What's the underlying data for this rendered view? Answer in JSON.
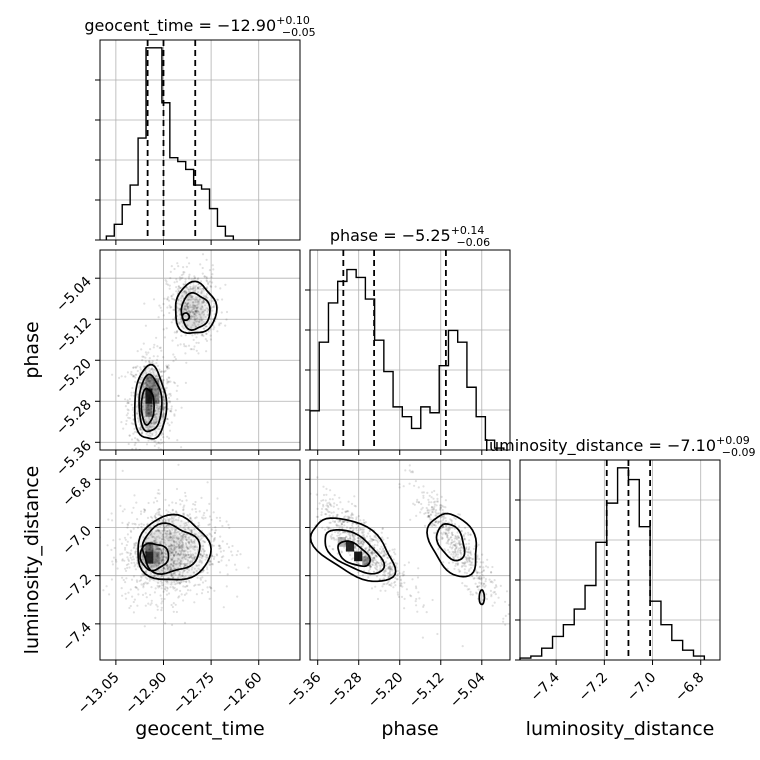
{
  "chart_data": {
    "type": "corner",
    "parameters": [
      "geocent_time",
      "phase",
      "luminosity_distance"
    ],
    "titles": [
      {
        "name": "geocent_time",
        "prefix": "geocent_time = ",
        "median": "−12.90",
        "plus": "+0.10",
        "minus": "−0.05"
      },
      {
        "name": "phase",
        "prefix": "phase = ",
        "median": "−5.25",
        "plus": "+0.14",
        "minus": "−0.06"
      },
      {
        "name": "luminosity_distance",
        "prefix": "luminosity_distance = ",
        "median": "−7.10",
        "plus": "+0.09",
        "minus": "−0.09"
      }
    ],
    "axes": {
      "geocent_time": {
        "range": [
          -13.1,
          -12.47
        ],
        "ticks": [
          -13.05,
          -12.9,
          -12.75,
          -12.6
        ],
        "tick_labels": [
          "−13.05",
          "−12.90",
          "−12.75",
          "−12.60"
        ]
      },
      "phase": {
        "range": [
          -5.375,
          -4.985
        ],
        "ticks": [
          -5.36,
          -5.28,
          -5.2,
          -5.12,
          -5.04
        ],
        "tick_labels": [
          "−5.36",
          "−5.28",
          "−5.20",
          "−5.12",
          "−5.04"
        ]
      },
      "luminosity_distance": {
        "range": [
          -7.55,
          -6.72
        ],
        "ticks": [
          -7.4,
          -7.2,
          -7.0,
          -6.8
        ],
        "tick_labels": [
          "−7.4",
          "−7.2",
          "−7.0",
          "−6.8"
        ]
      }
    },
    "histograms": {
      "geocent_time": {
        "bin_edges": [
          -13.08,
          -13.055,
          -13.03,
          -13.005,
          -12.98,
          -12.955,
          -12.93,
          -12.905,
          -12.88,
          -12.855,
          -12.83,
          -12.805,
          -12.78,
          -12.755,
          -12.73,
          -12.705,
          -12.68
        ],
        "counts": [
          0.02,
          0.08,
          0.18,
          0.28,
          0.52,
          0.98,
          0.98,
          0.7,
          0.42,
          0.4,
          0.36,
          0.28,
          0.26,
          0.16,
          0.07,
          0.02
        ]
      },
      "phase": {
        "bin_edges": [
          -5.375,
          -5.357,
          -5.339,
          -5.321,
          -5.303,
          -5.285,
          -5.267,
          -5.249,
          -5.231,
          -5.213,
          -5.195,
          -5.177,
          -5.159,
          -5.141,
          -5.123,
          -5.105,
          -5.087,
          -5.069,
          -5.051,
          -5.033,
          -5.015,
          -4.997
        ],
        "counts": [
          0.2,
          0.55,
          0.75,
          0.86,
          0.92,
          0.88,
          0.77,
          0.56,
          0.4,
          0.22,
          0.17,
          0.11,
          0.22,
          0.19,
          0.43,
          0.61,
          0.55,
          0.32,
          0.17,
          0.05,
          0.01
        ]
      },
      "luminosity_distance": {
        "bin_edges": [
          -7.55,
          -7.505,
          -7.46,
          -7.415,
          -7.37,
          -7.325,
          -7.28,
          -7.235,
          -7.19,
          -7.145,
          -7.1,
          -7.055,
          -7.01,
          -6.965,
          -6.92,
          -6.875,
          -6.83,
          -6.785
        ],
        "counts": [
          0.01,
          0.02,
          0.06,
          0.12,
          0.18,
          0.26,
          0.38,
          0.6,
          0.8,
          0.98,
          0.92,
          0.68,
          0.3,
          0.18,
          0.1,
          0.05,
          0.02
        ]
      }
    },
    "quantiles": {
      "geocent_time": [
        -12.95,
        -12.9,
        -12.8
      ],
      "phase": [
        -5.31,
        -5.25,
        -5.11
      ],
      "luminosity_distance": [
        -7.19,
        -7.1,
        -7.01
      ]
    },
    "grid": true
  }
}
